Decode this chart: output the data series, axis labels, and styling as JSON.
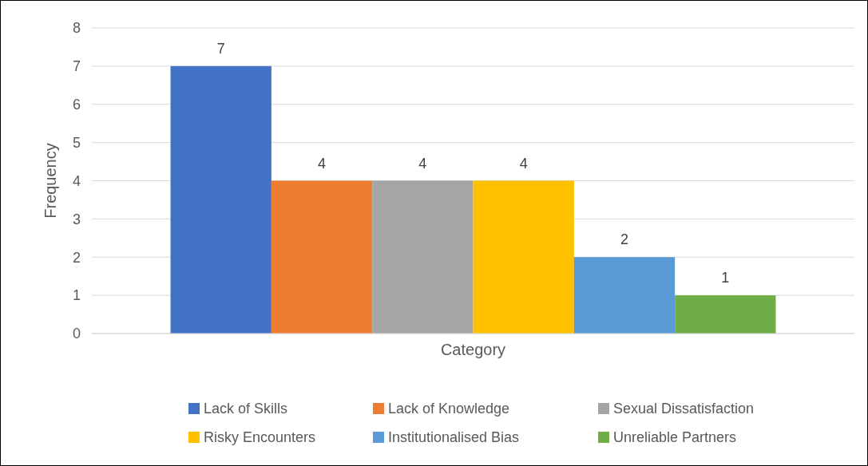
{
  "chart_data": {
    "type": "bar",
    "xlabel": null,
    "ylabel": "Frequency",
    "categories": [
      "Category"
    ],
    "series": [
      {
        "name": "Lack of Skills",
        "color": "#4472c4",
        "values": [
          7
        ]
      },
      {
        "name": "Lack of Knowledge",
        "color": "#ed7d31",
        "values": [
          4
        ]
      },
      {
        "name": "Sexual Dissatisfaction",
        "color": "#a5a5a5",
        "values": [
          4
        ]
      },
      {
        "name": "Risky Encounters",
        "color": "#ffc000",
        "values": [
          4
        ]
      },
      {
        "name": "Institutionalised Bias",
        "color": "#5b9bd5",
        "values": [
          2
        ]
      },
      {
        "name": "Unreliable Partners",
        "color": "#70ad47",
        "values": [
          1
        ]
      }
    ],
    "ylim": [
      0,
      8
    ],
    "yticks": [
      0,
      1,
      2,
      3,
      4,
      5,
      6,
      7,
      8
    ],
    "grid": "y",
    "legend": "bottom",
    "data_labels": true
  }
}
